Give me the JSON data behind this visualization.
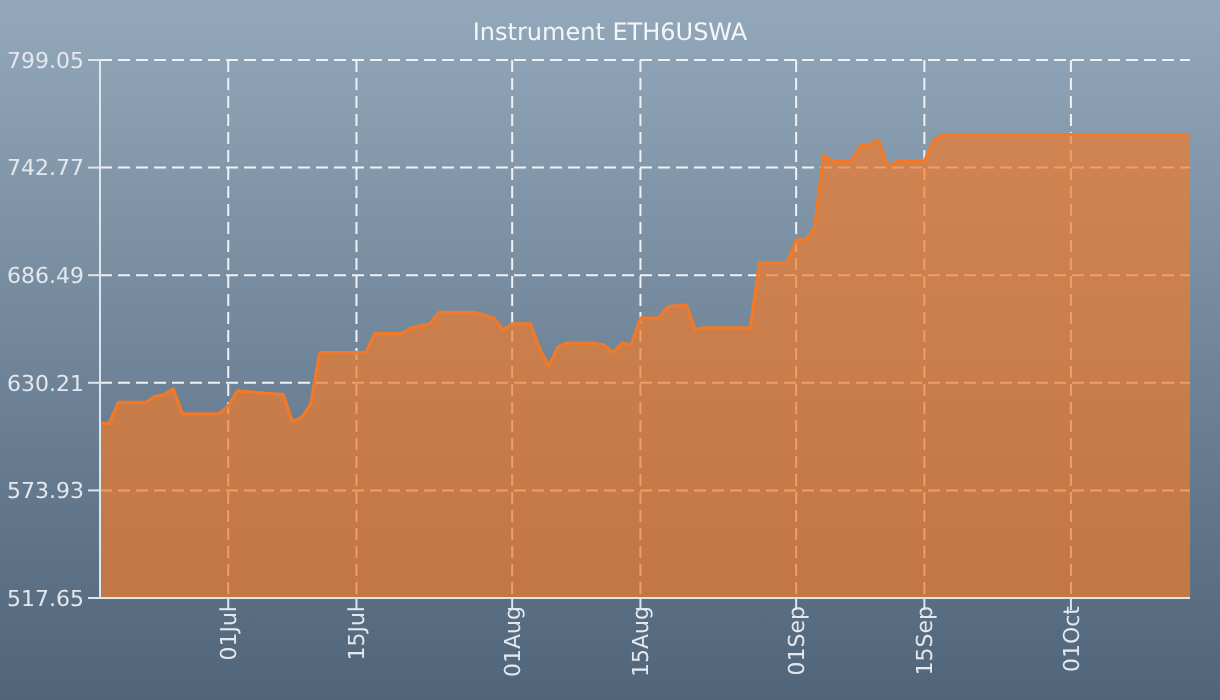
{
  "chart_data": {
    "type": "area",
    "title": "Instrument ETH6USWA",
    "x": [
      "--06-17",
      "--06-18",
      "--06-19",
      "--06-22",
      "--06-23",
      "--06-24",
      "--06-25",
      "--06-26",
      "--06-30",
      "--07-01",
      "--07-02",
      "--07-07",
      "--07-08",
      "--07-09",
      "--07-10",
      "--07-11",
      "--07-16",
      "--07-17",
      "--07-20",
      "--07-21",
      "--07-23",
      "--07-24",
      "--07-28",
      "--07-30",
      "--07-31",
      "--08-01",
      "--08-03",
      "--08-04",
      "--08-05",
      "--08-06",
      "--08-07",
      "--08-10",
      "--08-11",
      "--08-12",
      "--08-13",
      "--08-14",
      "--08-15",
      "--08-17",
      "--08-18",
      "--08-20",
      "--08-21",
      "--08-22",
      "--08-27",
      "--08-28",
      "--08-31",
      "--09-01",
      "--09-02",
      "--09-03",
      "--09-04",
      "--09-05",
      "--09-07",
      "--09-08",
      "--09-09",
      "--09-10",
      "--09-11",
      "--09-12",
      "--09-15",
      "--09-16",
      "--09-17",
      "--10-14"
    ],
    "series": [
      {
        "color": "#f07a2a",
        "values": [
          609,
          609,
          620,
          620,
          623,
          624,
          627,
          614,
          614,
          618,
          626,
          624,
          610,
          612,
          619,
          646,
          646,
          656,
          656,
          659,
          661,
          667,
          667,
          664,
          658,
          661,
          661,
          648,
          639,
          649,
          651,
          651,
          650,
          646,
          651,
          650,
          664,
          664,
          670,
          671,
          658,
          659,
          659,
          693,
          693,
          705,
          705,
          711,
          749,
          746,
          746,
          754,
          755,
          757,
          743,
          746,
          746,
          757,
          760,
          760
        ]
      }
    ],
    "xlim": [
      "--06-17",
      "--10-14"
    ],
    "xticks": [
      {
        "value": "--07-01",
        "label": "01Jul"
      },
      {
        "value": "--07-15",
        "label": "15Jul"
      },
      {
        "value": "--08-01",
        "label": "01Aug"
      },
      {
        "value": "--08-15",
        "label": "15Aug"
      },
      {
        "value": "--09-01",
        "label": "01Sep"
      },
      {
        "value": "--09-15",
        "label": "15Sep"
      },
      {
        "value": "--10-01",
        "label": "01Oct"
      }
    ],
    "ylim": [
      517.65,
      799.05
    ],
    "yticks": [
      517.65,
      573.93,
      630.21,
      686.49,
      742.77,
      799.05
    ],
    "grid": true
  }
}
